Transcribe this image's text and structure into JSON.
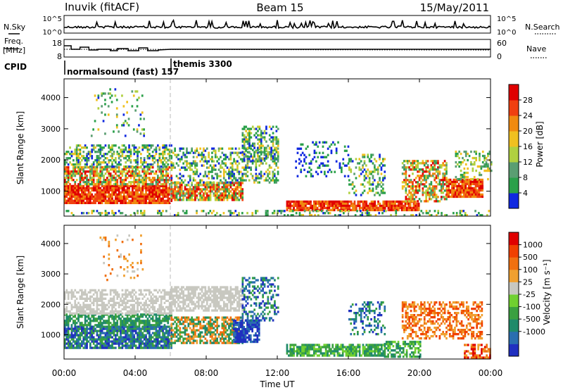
{
  "header": {
    "station": "Inuvik (fitACF)",
    "beam": "Beam 15",
    "date": "15/May/2011"
  },
  "chart_data": [
    {
      "id": "nsky-nsearch",
      "type": "line",
      "left_label": "N.Sky",
      "right_label": "N.Search",
      "y_ticks_left": [
        "10^5",
        "10^0"
      ],
      "y_ticks_right": [
        "10^5",
        "10^0"
      ],
      "x_range_hours": [
        0,
        24
      ]
    },
    {
      "id": "freq-nave",
      "type": "line",
      "left_label_line1": "Freq.",
      "left_label_line2": "[MHz]",
      "right_label": "Nave",
      "y_ticks_left": [
        "18",
        "8"
      ],
      "y_ticks_right": [
        "60",
        "0"
      ],
      "x_range_hours": [
        0,
        24
      ]
    },
    {
      "id": "cpid",
      "type": "table",
      "label": "CPID",
      "programs": [
        {
          "name": "normalsound (fast) 157",
          "start_hour": 0
        },
        {
          "name": "themis 3300",
          "start_hour": 6
        }
      ]
    },
    {
      "id": "power",
      "type": "heatmap",
      "ylabel": "Slant Range [km]",
      "y_ticks": [
        "1000",
        "2000",
        "3000",
        "4000"
      ],
      "ylim": [
        200,
        4600
      ],
      "xlim_hours": [
        0,
        24
      ],
      "colorbar": {
        "label": "Power [dB]",
        "ticks": [
          "4",
          "8",
          "12",
          "16",
          "20",
          "24",
          "28"
        ],
        "colors": [
          "#1028e0",
          "#2aa04a",
          "#5a9e72",
          "#b0d040",
          "#f0c020",
          "#f08a10",
          "#f04010",
          "#e00000"
        ]
      }
    },
    {
      "id": "velocity",
      "type": "heatmap",
      "ylabel": "Slant Range [km]",
      "y_ticks": [
        "1000",
        "2000",
        "3000",
        "4000"
      ],
      "ylim": [
        200,
        4600
      ],
      "xlim_hours": [
        0,
        24
      ],
      "xlabel": "Time UT",
      "x_ticks": [
        "00:00",
        "04:00",
        "08:00",
        "12:00",
        "16:00",
        "20:00",
        "00:00"
      ],
      "colorbar": {
        "label": "Velocity [m s⁻¹]",
        "ticks": [
          "1000",
          "500",
          "100",
          "25",
          "-25",
          "-100",
          "-500",
          "-1000"
        ],
        "colors": [
          "#2030c0",
          "#2a6eb0",
          "#1f8a6a",
          "#3aa040",
          "#70d030",
          "#c8c8c0",
          "#f0a030",
          "#f07010",
          "#f04000",
          "#e00000"
        ]
      }
    }
  ]
}
